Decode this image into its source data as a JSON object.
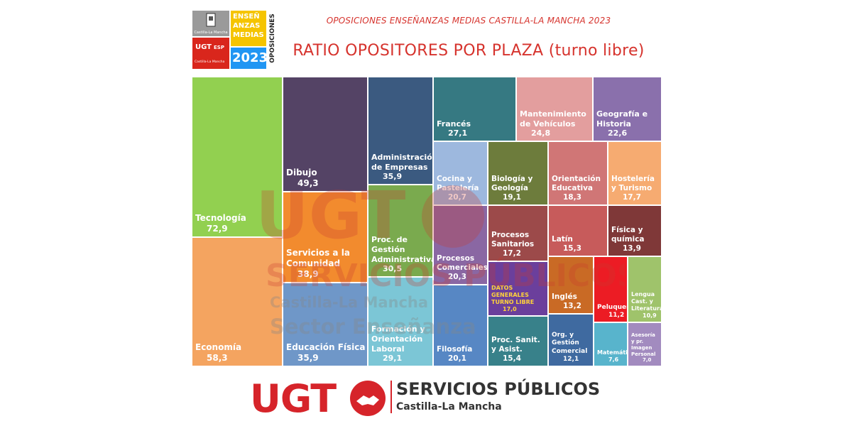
{
  "header": {
    "subtitle": "OPOSICIONES ENSEÑANZAS MEDIAS CASTILLA-LA MANCHA 2023",
    "title": "RATIO OPOSITORES POR PLAZA (turno libre)"
  },
  "logo": {
    "region": "Castilla-La Mancha",
    "ense_line1": "ENSEÑ",
    "ense_line2": "ANZAS",
    "ense_line3": "MEDIAS",
    "year": "2023",
    "vertical": "OPOSICIONES",
    "ugt_text": "UGT",
    "esp_text": "ESP",
    "ugt_region": "Castilla-La Mancha"
  },
  "watermark": {
    "brand": "UGT",
    "line1": "SERVICIOS PÚBLICOS",
    "line2": "Castilla-La Mancha",
    "line3": "Sector Enseñanza"
  },
  "footer": {
    "brand": "UGT",
    "service": "SERVICIOS PÚBLICOS",
    "region": "Castilla-La Mancha"
  },
  "chart_data": {
    "type": "treemap",
    "title": "RATIO OPOSITORES POR PLAZA (turno libre)",
    "items": [
      {
        "name": "Tecnología",
        "value": 72.9,
        "color": "#92d050"
      },
      {
        "name": "Economía",
        "value": 58.3,
        "color": "#f4a460"
      },
      {
        "name": "Dibujo",
        "value": 49.3,
        "color": "#544365"
      },
      {
        "name": "Servicios a la Comunidad",
        "value": 38.9,
        "color": "#f28b2e"
      },
      {
        "name": "Educación Física",
        "value": 35.9,
        "color": "#6f97c8"
      },
      {
        "name": "Administración de Empresas",
        "value": 35.9,
        "color": "#3b5a80"
      },
      {
        "name": "Proc. de Gestión Administrativa",
        "value": 30.5,
        "color": "#7aaa4e"
      },
      {
        "name": "Formación y Orientación Laboral",
        "value": 29.1,
        "color": "#7cc6d6"
      },
      {
        "name": "Francés",
        "value": 27.1,
        "color": "#367982"
      },
      {
        "name": "Mantenimiento de Vehículos",
        "value": 24.8,
        "color": "#e39e9e"
      },
      {
        "name": "Geografía e Historia",
        "value": 22.6,
        "color": "#8a70ac"
      },
      {
        "name": "Cocina y Pastelería",
        "value": 20.7,
        "color": "#9db8de"
      },
      {
        "name": "Procesos Comerciales",
        "value": 20.3,
        "color": "#8a67a3"
      },
      {
        "name": "Filosofía",
        "value": 20.1,
        "color": "#5787c4"
      },
      {
        "name": "Biología y Geología",
        "value": 19.1,
        "color": "#6d7c3c"
      },
      {
        "name": "Orientación Educativa",
        "value": 18.3,
        "color": "#d07676"
      },
      {
        "name": "Hostelería y Turismo",
        "value": 17.7,
        "color": "#f6ab71"
      },
      {
        "name": "Procesos Sanitarios",
        "value": 17.2,
        "color": "#9c4a4a"
      },
      {
        "name": "DATOS GENERALES TURNO LIBRE",
        "value": 17.0,
        "color": "#6b3f9c",
        "text_color": "#ffd33a"
      },
      {
        "name": "Proc. Sanit. y Asist.",
        "value": 15.4,
        "color": "#38818a"
      },
      {
        "name": "Latín",
        "value": 15.3,
        "color": "#c75b5b"
      },
      {
        "name": "Física y química",
        "value": 13.9,
        "color": "#7f3838"
      },
      {
        "name": "Inglés",
        "value": 13.2,
        "color": "#c96a25"
      },
      {
        "name": "Org. y Gestión Comercial",
        "value": 12.1,
        "color": "#3f6aa0"
      },
      {
        "name": "Peluquería",
        "value": 11.2,
        "color": "#ec1c24"
      },
      {
        "name": "Lengua Cast. y Literatura",
        "value": 10.9,
        "color": "#9fc36b"
      },
      {
        "name": "Matemáticas",
        "value": 7.6,
        "color": "#58b4cc"
      },
      {
        "name": "Asesoría y pr. Imagen Personal",
        "value": 7.0,
        "color": "#a28bbf"
      }
    ]
  }
}
